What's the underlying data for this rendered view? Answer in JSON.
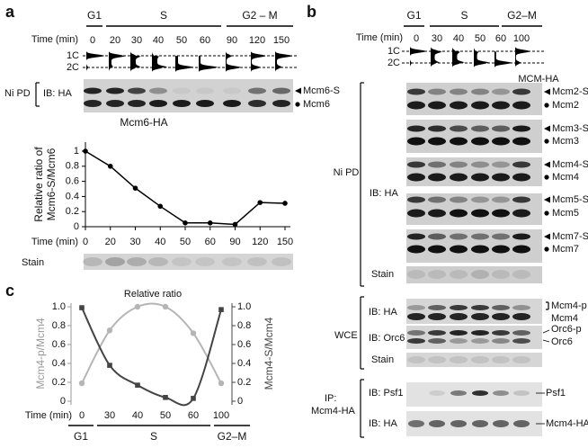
{
  "panel_a": {
    "letter": "a",
    "phases": [
      "G1",
      "S",
      "G2 – M"
    ],
    "time_label": "Time (min)",
    "times": [
      0,
      20,
      30,
      40,
      50,
      60,
      90,
      120,
      150
    ],
    "facs_labels": [
      "1C",
      "2C"
    ],
    "blot": {
      "group": "Ni PD",
      "probe": "IB: HA",
      "bands": [
        "Mcm6-S",
        "Mcm6"
      ]
    },
    "stain": "Stain"
  },
  "chart_data": [
    {
      "type": "line",
      "title": "Mcm6-HA",
      "x_label": "Time (min)",
      "y_label": [
        "Relative ratio of",
        "Mcm6-S/Mcm6"
      ],
      "categories": [
        0,
        20,
        30,
        40,
        50,
        60,
        90,
        120,
        150
      ],
      "values": [
        1,
        0.8,
        0.51,
        0.27,
        0.05,
        0.05,
        0.03,
        0.32,
        0.31
      ],
      "color": "#000000",
      "ylim": [
        0,
        1
      ],
      "yticks": [
        0,
        0.2,
        0.4,
        0.6,
        0.8,
        1
      ]
    },
    {
      "type": "scatter",
      "title": "Relative ratio",
      "x_label": "Time (min)",
      "y_label": "Mcm4-p/Mcm4",
      "y2_label": "Mcm4-S/Mcm4",
      "categories": [
        0,
        30,
        40,
        50,
        60,
        100
      ],
      "series": [
        {
          "color": "#b5b5b5",
          "marker": "circle",
          "values": [
            0.19,
            0.75,
            1.0,
            1.0,
            0.72,
            0.19
          ]
        },
        {
          "color": "#444444",
          "marker": "square",
          "axis": "y2",
          "values": [
            0.99,
            0.38,
            0.17,
            0.04,
            0.03,
            0.97
          ]
        }
      ],
      "ylim": [
        0,
        1
      ],
      "yticks": [
        0,
        0.2,
        0.4,
        0.6,
        0.8,
        {
          "value": 1,
          "label": "1.0"
        }
      ],
      "y2lim": [
        0,
        1
      ],
      "y2ticks": [
        0,
        0.2,
        0.4,
        0.6,
        0.8,
        {
          "value": 1,
          "label": "1.0"
        }
      ]
    }
  ],
  "panel_c": {
    "letter": "c",
    "phases": [
      "G1",
      "S",
      "G2–M"
    ]
  },
  "panel_b": {
    "letter": "b",
    "phases": [
      "G1",
      "S",
      "G2–M"
    ],
    "time_label": "Time (min)",
    "times": [
      0,
      30,
      40,
      50,
      60,
      100
    ],
    "facs_labels": [
      "1C",
      "2C"
    ],
    "ni_pd": {
      "label": "Ni PD",
      "probe": "IB: HA",
      "header": "MCM-HA",
      "blots": [
        [
          "Mcm2-S",
          "Mcm2"
        ],
        [
          "Mcm3-S",
          "Mcm3"
        ],
        [
          "Mcm4-S",
          "Mcm4"
        ],
        [
          "Mcm5-S",
          "Mcm5"
        ],
        [
          "Mcm7-S",
          "Mcm7"
        ]
      ],
      "stain": "Stain"
    },
    "wce": {
      "label": "WCE",
      "blots": [
        {
          "probe": "IB: HA",
          "bands": [
            "Mcm4-p",
            "Mcm4"
          ]
        },
        {
          "probe": "IB: Orc6",
          "bands": [
            "Orc6-p",
            "Orc6"
          ]
        }
      ],
      "stain": "Stain"
    },
    "ip": {
      "label": [
        "IP:",
        "Mcm4-HA"
      ],
      "blots": [
        {
          "probe": "IB: Psf1",
          "bands": [
            "Psf1"
          ]
        },
        {
          "probe": "IB: HA",
          "bands": [
            "Mcm4-HA"
          ]
        }
      ]
    }
  }
}
